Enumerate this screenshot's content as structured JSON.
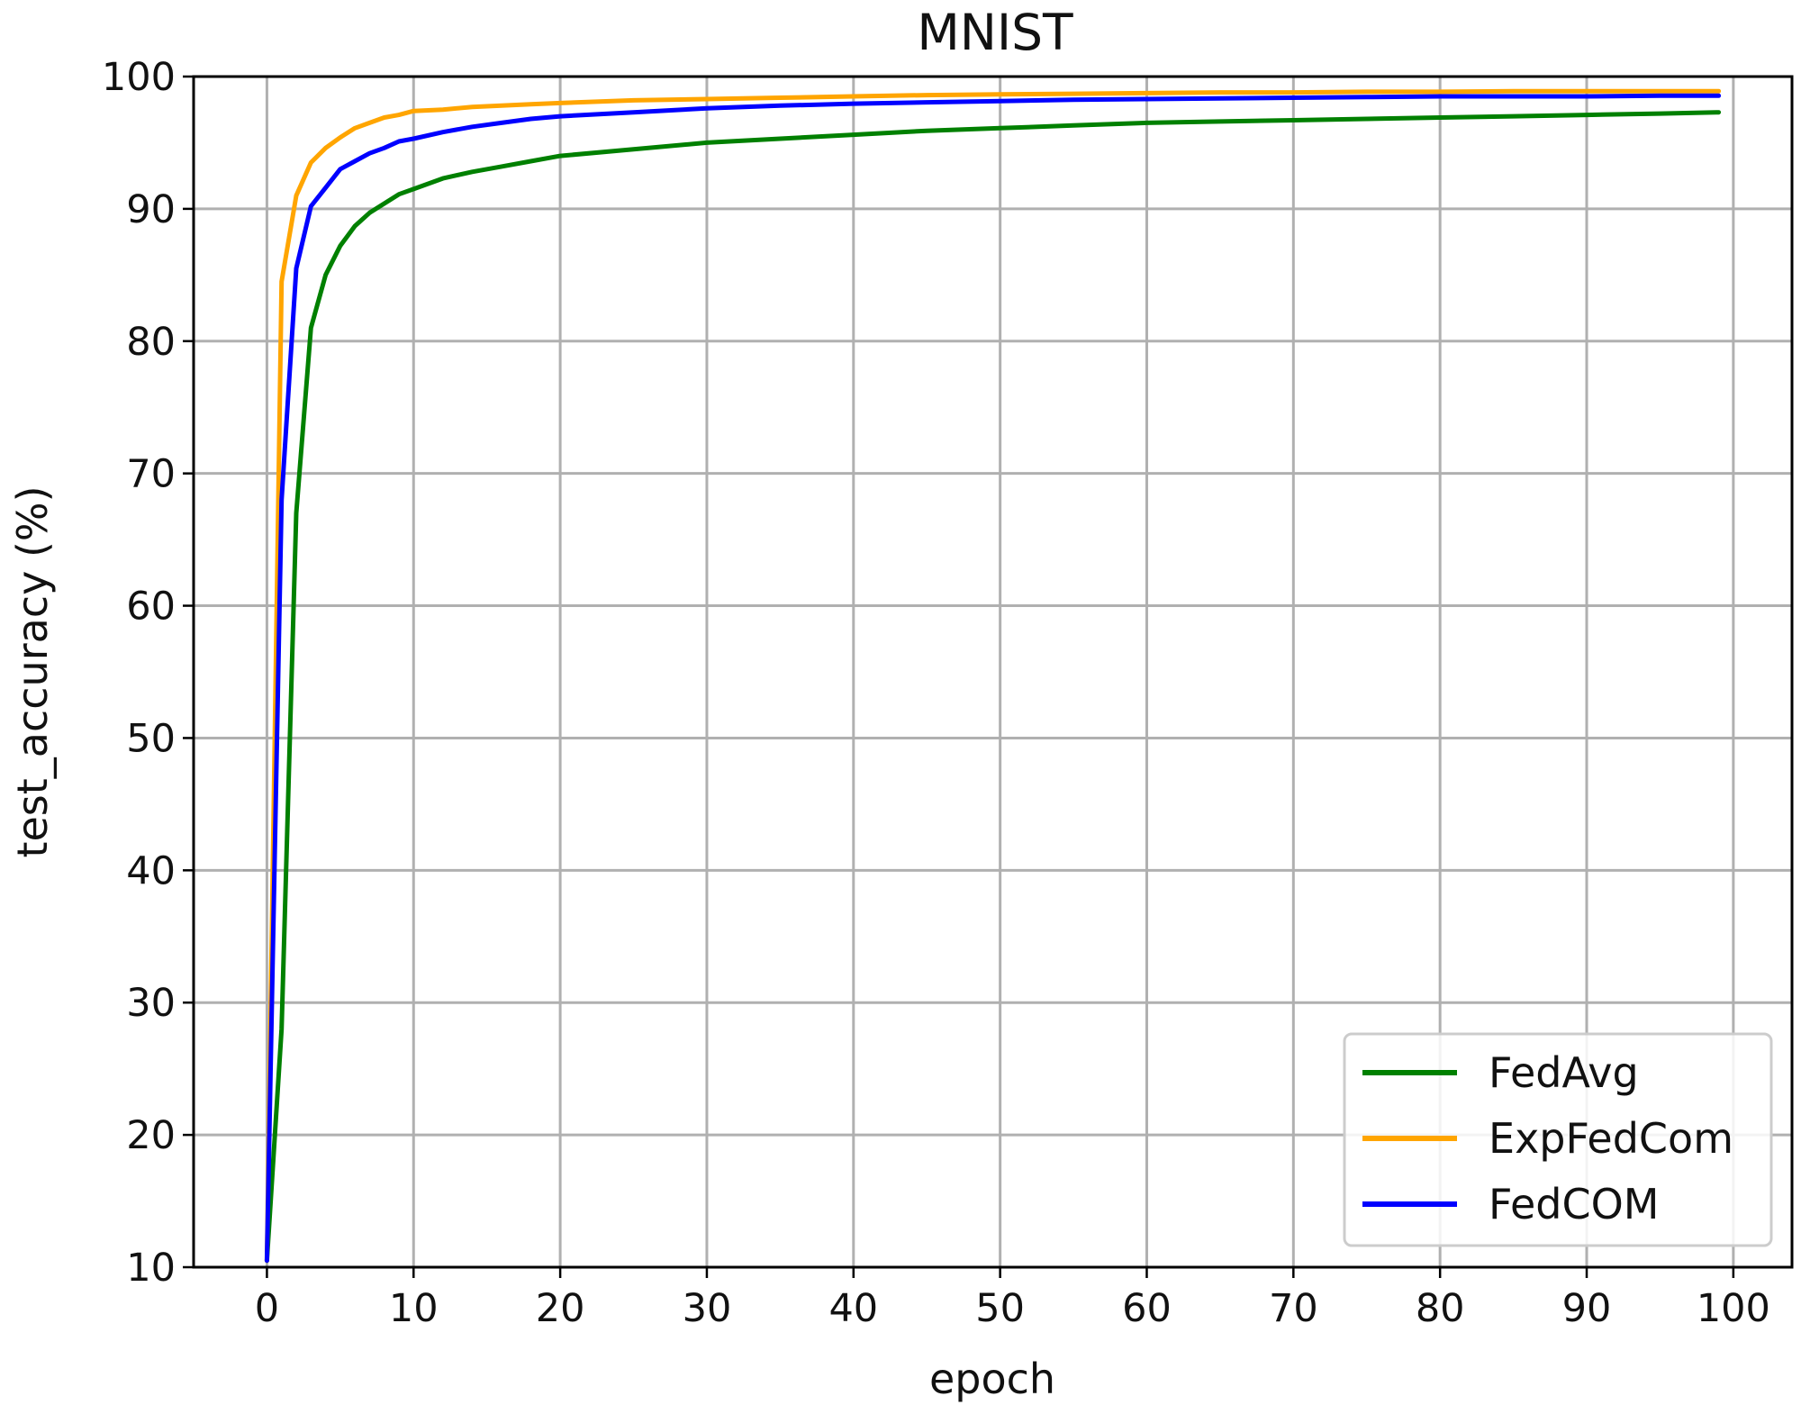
{
  "chart_data": {
    "type": "line",
    "title": "MNIST",
    "xlabel": "epoch",
    "ylabel": "test_accuracy (%)",
    "xlim": [
      -5,
      104
    ],
    "ylim": [
      10,
      100
    ],
    "xticks": [
      0,
      10,
      20,
      30,
      40,
      50,
      60,
      70,
      80,
      90,
      100
    ],
    "yticks": [
      10,
      20,
      30,
      40,
      50,
      60,
      70,
      80,
      90,
      100
    ],
    "grid": true,
    "legend_position": "bottom-right",
    "series": [
      {
        "name": "FedAvg",
        "color": "#008000",
        "points": [
          [
            0,
            10.5
          ],
          [
            1,
            28
          ],
          [
            2,
            67
          ],
          [
            3,
            81
          ],
          [
            4,
            85
          ],
          [
            5,
            87.2
          ],
          [
            6,
            88.7
          ],
          [
            7,
            89.7
          ],
          [
            8,
            90.4
          ],
          [
            9,
            91.1
          ],
          [
            10,
            91.5
          ],
          [
            12,
            92.3
          ],
          [
            14,
            92.8
          ],
          [
            16,
            93.2
          ],
          [
            18,
            93.6
          ],
          [
            20,
            94.0
          ],
          [
            25,
            94.5
          ],
          [
            30,
            95.0
          ],
          [
            35,
            95.3
          ],
          [
            40,
            95.6
          ],
          [
            45,
            95.9
          ],
          [
            50,
            96.1
          ],
          [
            55,
            96.3
          ],
          [
            60,
            96.5
          ],
          [
            65,
            96.6
          ],
          [
            70,
            96.7
          ],
          [
            75,
            96.8
          ],
          [
            80,
            96.9
          ],
          [
            85,
            97.0
          ],
          [
            90,
            97.1
          ],
          [
            95,
            97.2
          ],
          [
            99,
            97.3
          ]
        ]
      },
      {
        "name": "ExpFedCom",
        "color": "#ffa500",
        "points": [
          [
            0,
            10.5
          ],
          [
            1,
            84.5
          ],
          [
            2,
            91
          ],
          [
            3,
            93.5
          ],
          [
            4,
            94.6
          ],
          [
            5,
            95.4
          ],
          [
            6,
            96.1
          ],
          [
            7,
            96.5
          ],
          [
            8,
            96.9
          ],
          [
            9,
            97.1
          ],
          [
            10,
            97.4
          ],
          [
            12,
            97.5
          ],
          [
            14,
            97.7
          ],
          [
            16,
            97.8
          ],
          [
            18,
            97.9
          ],
          [
            20,
            98.0
          ],
          [
            25,
            98.2
          ],
          [
            30,
            98.3
          ],
          [
            35,
            98.4
          ],
          [
            40,
            98.5
          ],
          [
            45,
            98.6
          ],
          [
            50,
            98.65
          ],
          [
            55,
            98.7
          ],
          [
            60,
            98.75
          ],
          [
            65,
            98.8
          ],
          [
            70,
            98.8
          ],
          [
            75,
            98.85
          ],
          [
            80,
            98.85
          ],
          [
            85,
            98.9
          ],
          [
            90,
            98.9
          ],
          [
            95,
            98.9
          ],
          [
            99,
            98.9
          ]
        ]
      },
      {
        "name": "FedCOM",
        "color": "#0000ff",
        "points": [
          [
            0,
            10.5
          ],
          [
            1,
            68
          ],
          [
            2,
            85.5
          ],
          [
            3,
            90.2
          ],
          [
            4,
            91.6
          ],
          [
            5,
            93.0
          ],
          [
            6,
            93.6
          ],
          [
            7,
            94.2
          ],
          [
            8,
            94.6
          ],
          [
            9,
            95.1
          ],
          [
            10,
            95.3
          ],
          [
            12,
            95.8
          ],
          [
            14,
            96.2
          ],
          [
            16,
            96.5
          ],
          [
            18,
            96.8
          ],
          [
            20,
            97.0
          ],
          [
            25,
            97.3
          ],
          [
            30,
            97.6
          ],
          [
            35,
            97.8
          ],
          [
            40,
            97.95
          ],
          [
            45,
            98.05
          ],
          [
            50,
            98.15
          ],
          [
            55,
            98.25
          ],
          [
            60,
            98.3
          ],
          [
            65,
            98.35
          ],
          [
            70,
            98.4
          ],
          [
            75,
            98.45
          ],
          [
            80,
            98.5
          ],
          [
            85,
            98.5
          ],
          [
            90,
            98.5
          ],
          [
            95,
            98.55
          ],
          [
            99,
            98.55
          ]
        ]
      }
    ]
  }
}
